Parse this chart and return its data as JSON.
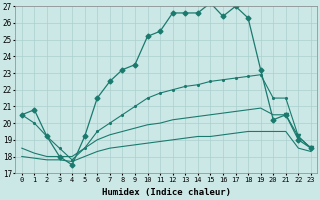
{
  "xlabel": "Humidex (Indice chaleur)",
  "x": [
    0,
    1,
    2,
    3,
    4,
    5,
    6,
    7,
    8,
    9,
    10,
    11,
    12,
    13,
    14,
    15,
    16,
    17,
    18,
    19,
    20,
    21,
    22,
    23
  ],
  "line1": [
    20.5,
    20.8,
    19.2,
    18.0,
    17.5,
    19.2,
    21.5,
    22.5,
    23.2,
    23.5,
    25.2,
    25.5,
    26.6,
    26.6,
    26.6,
    27.2,
    26.4,
    27.0,
    26.3,
    23.2,
    20.2,
    20.5,
    19.0,
    18.5
  ],
  "line2": [
    20.5,
    20.0,
    19.2,
    18.5,
    17.8,
    18.5,
    19.5,
    20.0,
    20.5,
    21.0,
    21.5,
    21.8,
    22.0,
    22.2,
    22.3,
    22.5,
    22.6,
    22.7,
    22.8,
    22.9,
    21.5,
    21.5,
    19.2,
    18.5
  ],
  "line3": [
    18.5,
    18.2,
    18.0,
    18.0,
    18.0,
    18.5,
    19.0,
    19.3,
    19.5,
    19.7,
    19.9,
    20.0,
    20.2,
    20.3,
    20.4,
    20.5,
    20.6,
    20.7,
    20.8,
    20.9,
    20.5,
    20.5,
    19.2,
    18.5
  ],
  "line4": [
    18.0,
    17.9,
    17.8,
    17.8,
    17.7,
    18.0,
    18.3,
    18.5,
    18.6,
    18.7,
    18.8,
    18.9,
    19.0,
    19.1,
    19.2,
    19.2,
    19.3,
    19.4,
    19.5,
    19.5,
    19.5,
    19.5,
    18.5,
    18.3
  ],
  "color": "#1a7a6e",
  "bg_color": "#cce8e6",
  "grid_color": "#aacfcd",
  "ylim": [
    17,
    27
  ],
  "yticks": [
    17,
    18,
    19,
    20,
    21,
    22,
    23,
    24,
    25,
    26,
    27
  ]
}
